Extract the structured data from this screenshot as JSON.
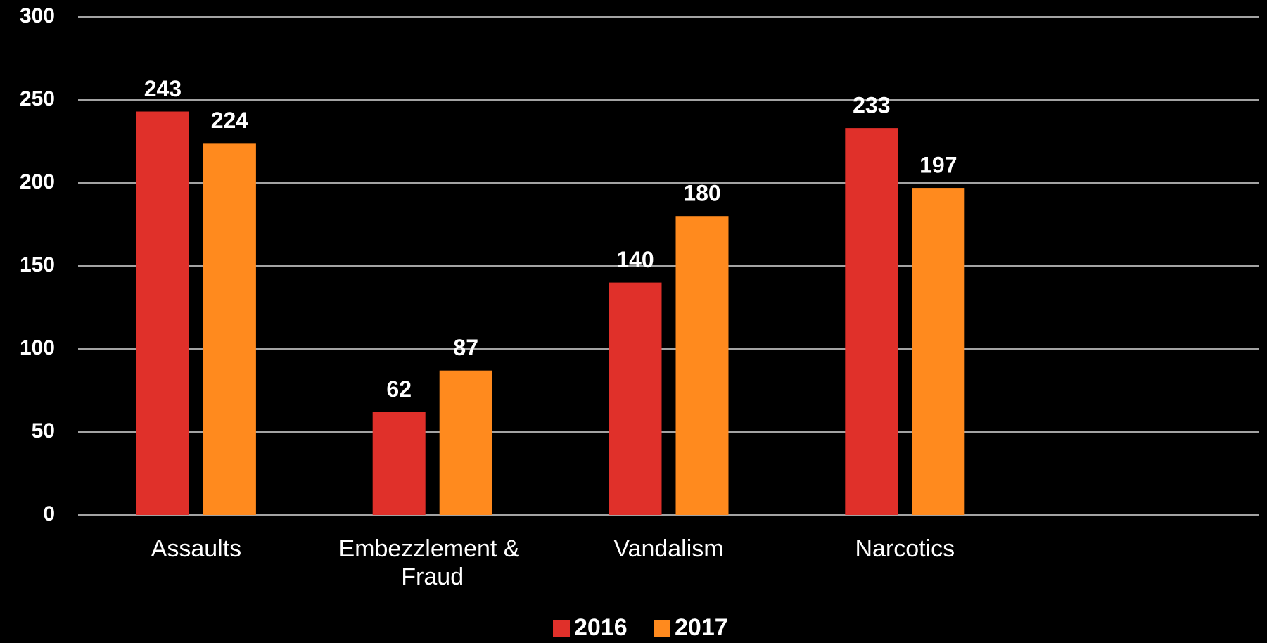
{
  "chart_data": {
    "type": "bar",
    "categories": [
      "Assaults",
      "Embezzlement & Fraud",
      "Vandalism",
      "Narcotics",
      null
    ],
    "series": [
      {
        "name": "2016",
        "color": "#e0302a",
        "values": [
          243,
          62,
          140,
          233,
          null
        ]
      },
      {
        "name": "2017",
        "color": "#ff8a1e",
        "values": [
          224,
          87,
          180,
          197,
          null
        ]
      }
    ],
    "ylim": [
      0,
      300
    ],
    "yticks": [
      0,
      50,
      100,
      150,
      200,
      250,
      300
    ],
    "grid": true,
    "legend": "bottom"
  }
}
